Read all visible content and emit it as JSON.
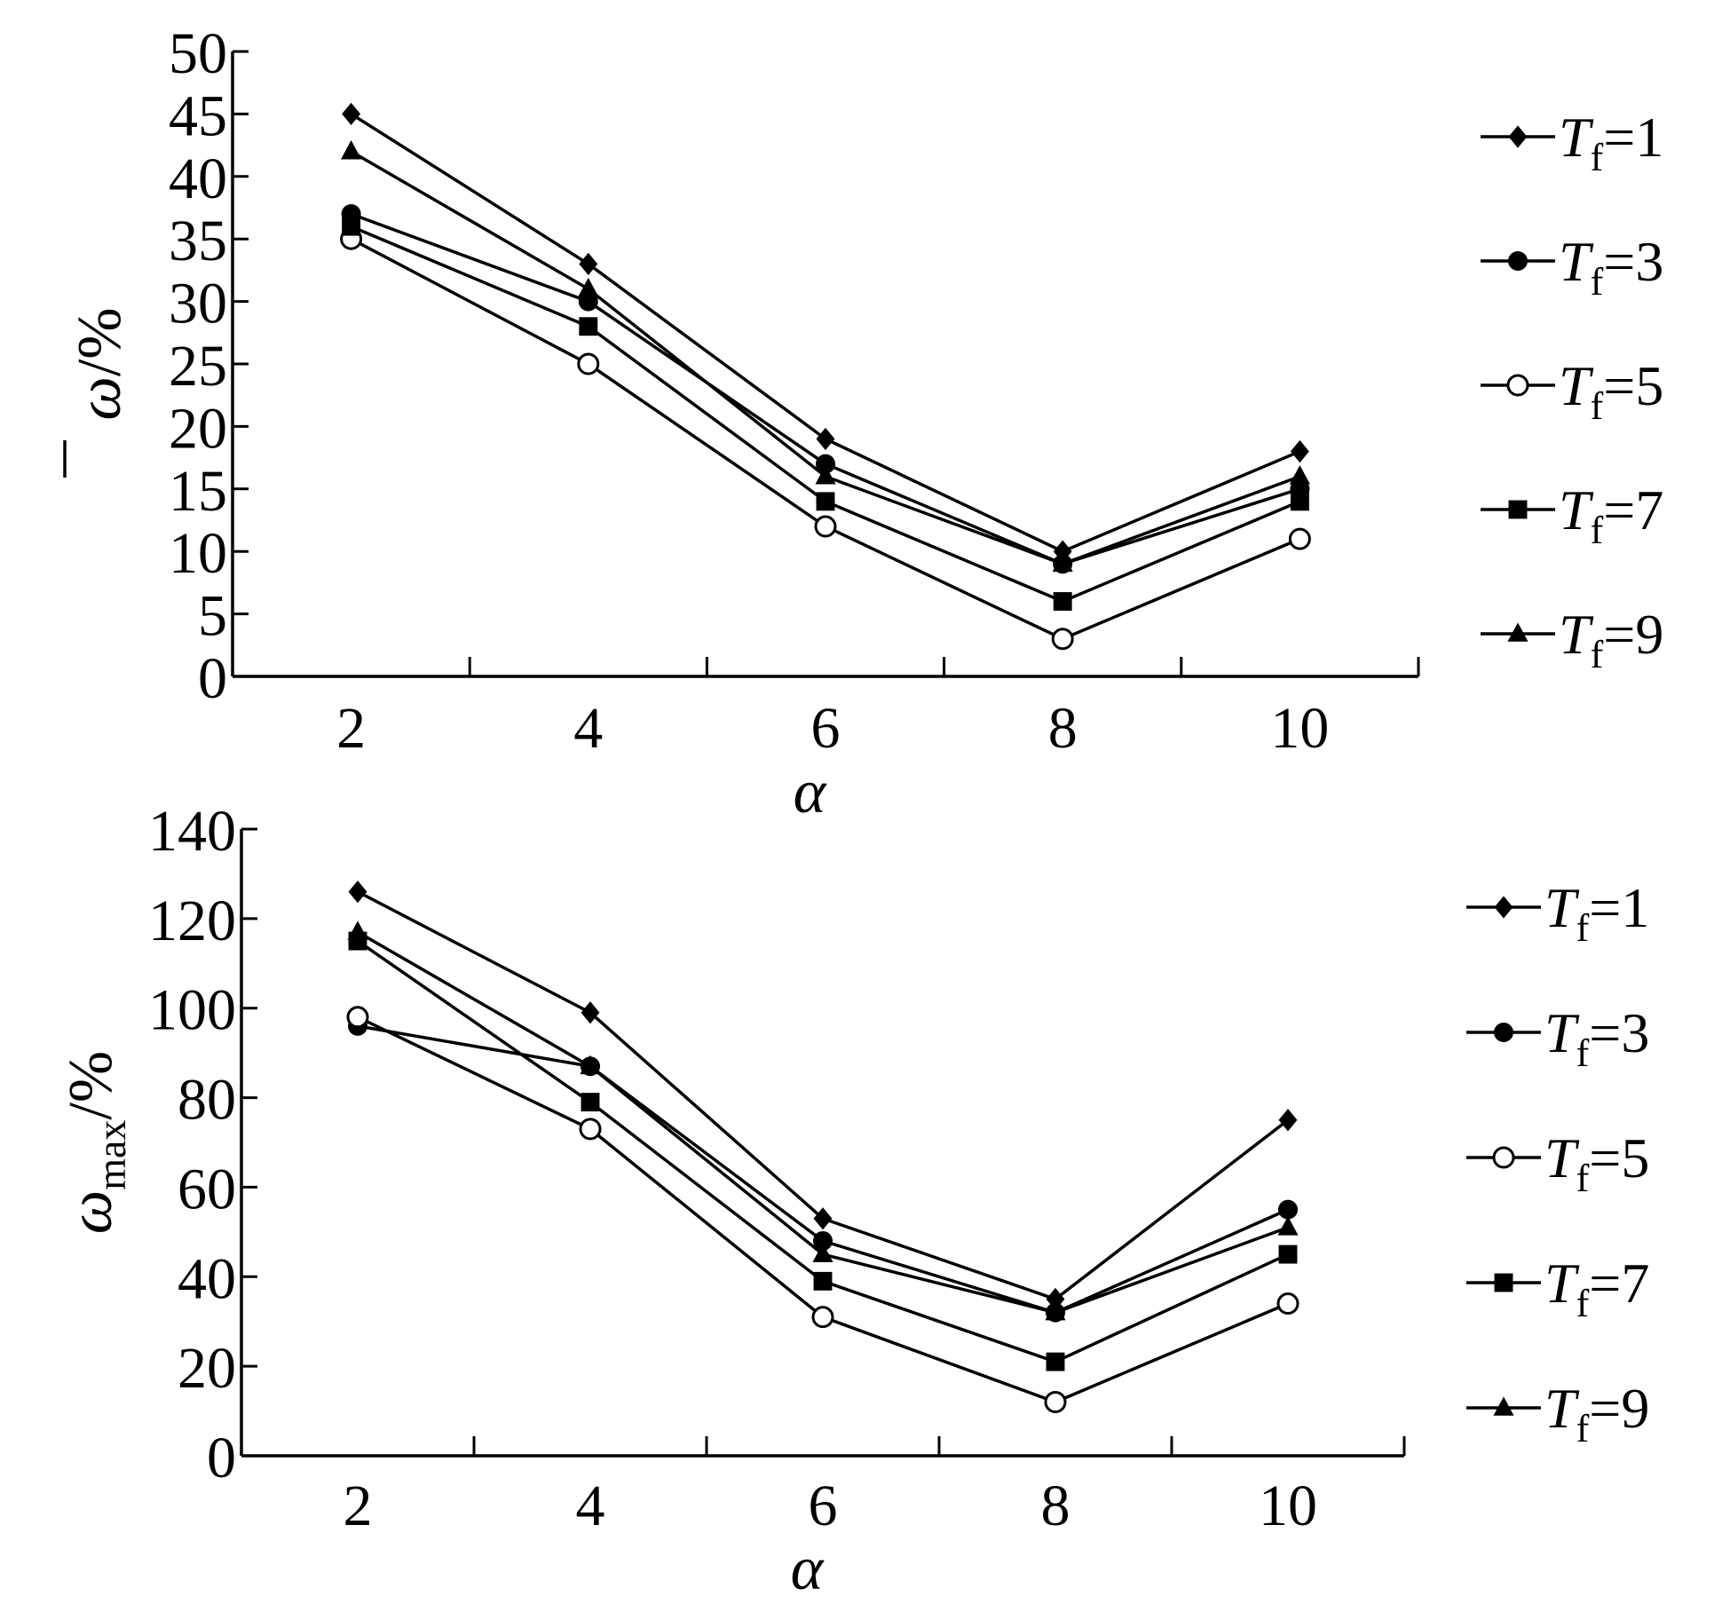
{
  "chart_data": [
    {
      "type": "line",
      "title": "",
      "xlabel": "α",
      "ylabel_main": "ω",
      "ylabel_suffix": "/%",
      "x": [
        2,
        4,
        6,
        8,
        10
      ],
      "xticks": [
        2,
        4,
        6,
        8,
        10
      ],
      "xlim": [
        1,
        11
      ],
      "ylim": [
        0,
        50
      ],
      "yticks": [
        0,
        5,
        10,
        15,
        20,
        25,
        30,
        35,
        40,
        45,
        50
      ],
      "grid": false,
      "legend_placement": "right",
      "series": [
        {
          "name": "Tf=1",
          "symbol": "T",
          "subscript": "f",
          "suffix": "=1",
          "marker": "diamond",
          "values": [
            45,
            33,
            19,
            10,
            18
          ]
        },
        {
          "name": "Tf=3",
          "symbol": "T",
          "subscript": "f",
          "suffix": "=3",
          "marker": "circle-filled",
          "values": [
            37,
            30,
            17,
            9,
            15
          ]
        },
        {
          "name": "Tf=5",
          "symbol": "T",
          "subscript": "f",
          "suffix": "=5",
          "marker": "circle-open",
          "values": [
            35,
            25,
            12,
            3,
            11
          ]
        },
        {
          "name": "Tf=7",
          "symbol": "T",
          "subscript": "f",
          "suffix": "=7",
          "marker": "square",
          "values": [
            36,
            28,
            14,
            6,
            14
          ]
        },
        {
          "name": "Tf=9",
          "symbol": "T",
          "subscript": "f",
          "suffix": "=9",
          "marker": "triangle",
          "values": [
            42,
            31,
            16,
            9,
            16
          ]
        }
      ]
    },
    {
      "type": "line",
      "title": "",
      "xlabel": "α",
      "ylabel_main": "ω",
      "ylabel_sub": "max",
      "ylabel_suffix": "/%",
      "x": [
        2,
        4,
        6,
        8,
        10
      ],
      "xticks": [
        2,
        4,
        6,
        8,
        10
      ],
      "xlim": [
        1,
        11
      ],
      "ylim": [
        0,
        140
      ],
      "yticks": [
        0,
        20,
        40,
        60,
        80,
        100,
        120,
        140
      ],
      "grid": false,
      "legend_placement": "right",
      "series": [
        {
          "name": "Tf=1",
          "symbol": "T",
          "subscript": "f",
          "suffix": "=1",
          "marker": "diamond",
          "values": [
            126,
            99,
            53,
            35,
            75
          ]
        },
        {
          "name": "Tf=3",
          "symbol": "T",
          "subscript": "f",
          "suffix": "=3",
          "marker": "circle-filled",
          "values": [
            96,
            87,
            48,
            32,
            55
          ]
        },
        {
          "name": "Tf=5",
          "symbol": "T",
          "subscript": "f",
          "suffix": "=5",
          "marker": "circle-open",
          "values": [
            98,
            73,
            31,
            12,
            34
          ]
        },
        {
          "name": "Tf=7",
          "symbol": "T",
          "subscript": "f",
          "suffix": "=7",
          "marker": "square",
          "values": [
            115,
            79,
            39,
            21,
            45
          ]
        },
        {
          "name": "Tf=9",
          "symbol": "T",
          "subscript": "f",
          "suffix": "=9",
          "marker": "triangle",
          "values": [
            117,
            87,
            45,
            32,
            51
          ]
        }
      ]
    }
  ]
}
